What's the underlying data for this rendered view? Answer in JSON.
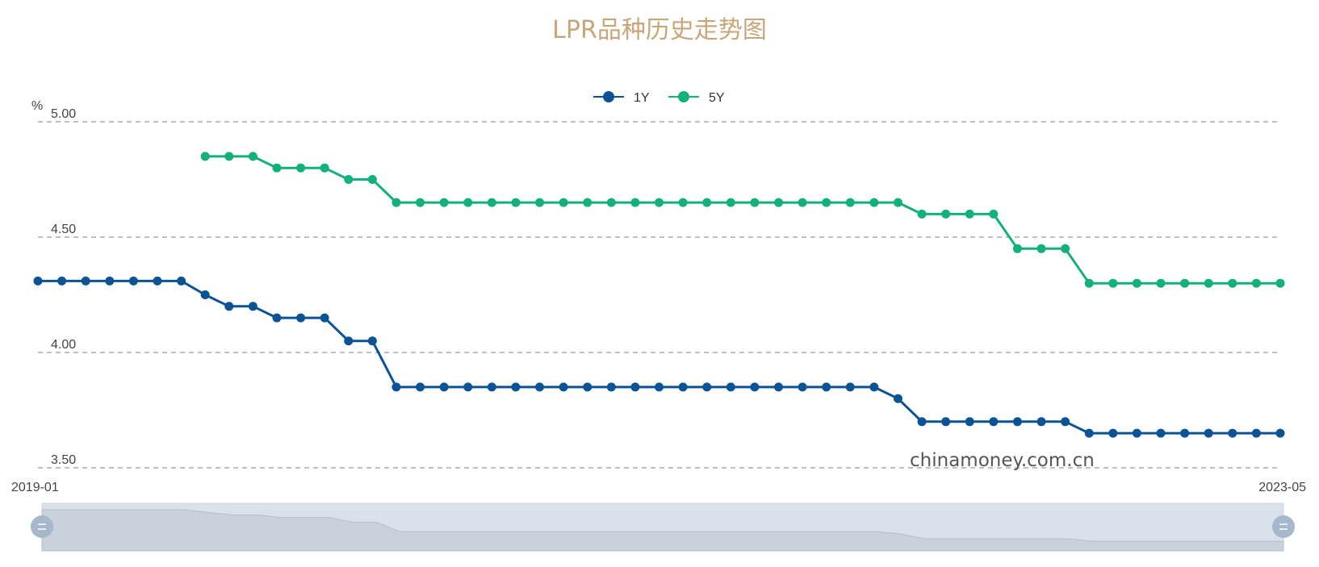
{
  "chart_data": {
    "type": "line",
    "title": "LPR品种历史走势图",
    "y_unit": "%",
    "ylim": [
      3.5,
      5.0
    ],
    "y_ticks": [
      "5.00",
      "4.50",
      "4.00",
      "3.50"
    ],
    "x_start_label": "2019-01",
    "x_end_label": "2023-05",
    "grid": "horizontal dashed",
    "legend_position": "top-center",
    "series": [
      {
        "name": "1Y",
        "color": "#0b5395",
        "values": [
          4.31,
          4.31,
          4.31,
          4.31,
          4.31,
          4.31,
          4.31,
          4.25,
          4.2,
          4.2,
          4.15,
          4.15,
          4.15,
          4.05,
          4.05,
          3.85,
          3.85,
          3.85,
          3.85,
          3.85,
          3.85,
          3.85,
          3.85,
          3.85,
          3.85,
          3.85,
          3.85,
          3.85,
          3.85,
          3.85,
          3.85,
          3.85,
          3.85,
          3.85,
          3.85,
          3.85,
          3.8,
          3.7,
          3.7,
          3.7,
          3.7,
          3.7,
          3.7,
          3.7,
          3.65,
          3.65,
          3.65,
          3.65,
          3.65,
          3.65,
          3.65,
          3.65,
          3.65
        ]
      },
      {
        "name": "5Y",
        "color": "#12b07a",
        "values": [
          null,
          null,
          null,
          null,
          null,
          null,
          null,
          4.85,
          4.85,
          4.85,
          4.8,
          4.8,
          4.8,
          4.75,
          4.75,
          4.65,
          4.65,
          4.65,
          4.65,
          4.65,
          4.65,
          4.65,
          4.65,
          4.65,
          4.65,
          4.65,
          4.65,
          4.65,
          4.65,
          4.65,
          4.65,
          4.65,
          4.65,
          4.65,
          4.65,
          4.65,
          4.65,
          4.6,
          4.6,
          4.6,
          4.6,
          4.45,
          4.45,
          4.45,
          4.3,
          4.3,
          4.3,
          4.3,
          4.3,
          4.3,
          4.3,
          4.3,
          4.3
        ]
      }
    ]
  },
  "watermark": "chinamoney.com.cn",
  "slider": {
    "fill_color": "#d9e1ea",
    "handle_color": "#a7b7cc",
    "range": [
      0,
      1
    ]
  }
}
